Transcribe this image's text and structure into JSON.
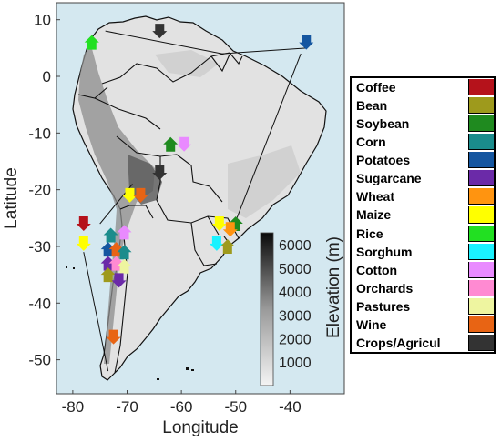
{
  "map": {
    "xlabel": "Longitude",
    "ylabel": "Latitude",
    "x_ticks": [
      "-80",
      "-70",
      "-60",
      "-50",
      "-40"
    ],
    "y_ticks": [
      "10",
      "0",
      "-10",
      "-20",
      "-30",
      "-40",
      "-50"
    ],
    "xlim": [
      -83,
      -30
    ],
    "ylim": [
      -56,
      13
    ],
    "background_color": "#d4e8f0"
  },
  "colorbar": {
    "label": "Elevation (m)",
    "ticks": [
      "6000",
      "5000",
      "4000",
      "3000",
      "2000",
      "1000"
    ],
    "range": [
      0,
      6500
    ]
  },
  "legend": {
    "items": [
      {
        "label": "Coffee",
        "color": "#b5121b"
      },
      {
        "label": "Bean",
        "color": "#9e9a1c"
      },
      {
        "label": "Soybean",
        "color": "#1f8a1f"
      },
      {
        "label": "Corn",
        "color": "#1a8c8c"
      },
      {
        "label": "Potatoes",
        "color": "#1556a0"
      },
      {
        "label": "Sugarcane",
        "color": "#6b2aa8"
      },
      {
        "label": "Wheat",
        "color": "#ff9410"
      },
      {
        "label": "Maize",
        "color": "#ffff00"
      },
      {
        "label": "Rice",
        "color": "#22e022"
      },
      {
        "label": "Sorghum",
        "color": "#1af2ff"
      },
      {
        "label": "Cotton",
        "color": "#e98aff"
      },
      {
        "label": "Orchards",
        "color": "#ff8ad2"
      },
      {
        "label": "Pastures",
        "color": "#eef5a0"
      },
      {
        "label": "Wine",
        "color": "#e86414"
      },
      {
        "label": "Crops/Agricul",
        "color": "#333333"
      }
    ]
  },
  "markers": [
    {
      "crop": "Rice",
      "lon": -76.5,
      "lat": 6,
      "dir": "up"
    },
    {
      "crop": "Crops/Agricul",
      "lon": -64,
      "lat": 8,
      "dir": "down"
    },
    {
      "crop": "Potatoes",
      "lon": -37,
      "lat": 6,
      "dir": "down"
    },
    {
      "crop": "Soybean",
      "lon": -62,
      "lat": -12,
      "dir": "up"
    },
    {
      "crop": "Cotton",
      "lon": -59.5,
      "lat": -12,
      "dir": "down"
    },
    {
      "crop": "Crops/Agricul",
      "lon": -64,
      "lat": -17,
      "dir": "down"
    },
    {
      "crop": "Maize",
      "lon": -69.5,
      "lat": -21,
      "dir": "down"
    },
    {
      "crop": "Wine",
      "lon": -67.5,
      "lat": -21,
      "dir": "down"
    },
    {
      "crop": "Coffee",
      "lon": -78,
      "lat": -26,
      "dir": "down"
    },
    {
      "crop": "Maize",
      "lon": -78,
      "lat": -29.5,
      "dir": "down"
    },
    {
      "crop": "Corn",
      "lon": -73,
      "lat": -28,
      "dir": "up"
    },
    {
      "crop": "Cotton",
      "lon": -70.5,
      "lat": -27.5,
      "dir": "up"
    },
    {
      "crop": "Potatoes",
      "lon": -73.5,
      "lat": -30.5,
      "dir": "up"
    },
    {
      "crop": "Wine",
      "lon": -72,
      "lat": -30.5,
      "dir": "up"
    },
    {
      "crop": "Corn",
      "lon": -70.5,
      "lat": -31,
      "dir": "up"
    },
    {
      "crop": "Sugarcane",
      "lon": -73.5,
      "lat": -33,
      "dir": "up"
    },
    {
      "crop": "Orchards",
      "lon": -72,
      "lat": -33,
      "dir": "up"
    },
    {
      "crop": "Pastures",
      "lon": -70.5,
      "lat": -33.5,
      "dir": "up"
    },
    {
      "crop": "Bean",
      "lon": -73.5,
      "lat": -35,
      "dir": "up"
    },
    {
      "crop": "Sugarcane",
      "lon": -71.5,
      "lat": -36,
      "dir": "down"
    },
    {
      "crop": "Wine",
      "lon": -72.5,
      "lat": -46,
      "dir": "down"
    },
    {
      "crop": "Maize",
      "lon": -53,
      "lat": -26,
      "dir": "down"
    },
    {
      "crop": "Soybean",
      "lon": -50,
      "lat": -26,
      "dir": "up"
    },
    {
      "crop": "Wheat",
      "lon": -51,
      "lat": -27,
      "dir": "down"
    },
    {
      "crop": "Sorghum",
      "lon": -53.5,
      "lat": -29.5,
      "dir": "down"
    },
    {
      "crop": "Bean",
      "lon": -51.5,
      "lat": -30,
      "dir": "up"
    }
  ],
  "leader_lines": [
    {
      "from": [
        -74,
        8
      ],
      "to": [
        -52.5,
        4
      ],
      "to2": [
        -37,
        5
      ]
    },
    {
      "from": [
        -78,
        -31
      ],
      "to": [
        -73.5,
        -52
      ]
    },
    {
      "from": [
        -51,
        -28
      ],
      "to": [
        -38,
        4
      ]
    },
    {
      "from": [
        -75,
        -26
      ],
      "to": [
        -69,
        -19
      ]
    }
  ]
}
